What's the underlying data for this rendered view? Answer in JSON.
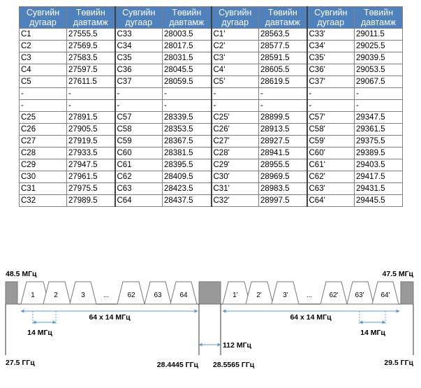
{
  "table": {
    "headers": [
      "Сувгийн дугаар",
      "Төвийн давтамж",
      "Сувгийн дугаар",
      "Төвийн давтамж",
      "Сувгийн дугаар",
      "Төвийн давтамж",
      "Сувгийн дугаар",
      "Төвийн давтамж"
    ],
    "rows": [
      [
        "C1",
        "27555.5",
        "C33",
        "28003.5",
        "C1'",
        "28563.5",
        "C33'",
        "29011.5"
      ],
      [
        "C2",
        "27569.5",
        "C34",
        "28017.5",
        "C2'",
        "28577.5",
        "C34'",
        "29025.5"
      ],
      [
        "C3",
        "27583.5",
        "C35",
        "28031.5",
        "C3'",
        "28591.5",
        "C35'",
        "29039.5"
      ],
      [
        "C4",
        "27597.5",
        "C36",
        "28045.5",
        "C4'",
        "28605.5",
        "C36'",
        "29053.5"
      ],
      [
        "C5",
        "27611.5",
        "C37",
        "28059.5",
        "C5'",
        "28619.5",
        "C37'",
        "29067.5"
      ],
      [
        "-",
        "-",
        "-",
        "-",
        "-",
        "-",
        "-",
        "-"
      ],
      [
        "-",
        "-",
        "-",
        "-",
        "-",
        "-",
        "-",
        "-"
      ],
      [
        "C25",
        "27891.5",
        "C57",
        "28339.5",
        "C25'",
        "28899.5",
        "C57'",
        "29347.5"
      ],
      [
        "C26",
        "27905.5",
        "C58",
        "28353.5",
        "C26'",
        "28913.5",
        "C58'",
        "29361.5"
      ],
      [
        "C27",
        "27919.5",
        "C59",
        "28367.5",
        "C27'",
        "28927.5",
        "C59'",
        "29375.5"
      ],
      [
        "C28",
        "27933.5",
        "C60",
        "28381.5",
        "C28'",
        "28941.5",
        "C60'",
        "29389.5"
      ],
      [
        "C29",
        "27947.5",
        "C61",
        "28395.5",
        "C29'",
        "28955.5",
        "C61'",
        "29403.5"
      ],
      [
        "C30",
        "27961.5",
        "C62",
        "28409.5",
        "C30'",
        "28969.5",
        "C62'",
        "29417.5"
      ],
      [
        "C31",
        "27975.5",
        "C63",
        "28423.5",
        "C31'",
        "28983.5",
        "C63'",
        "29431.5"
      ],
      [
        "C32",
        "27989.5",
        "C64",
        "28437.5",
        "C32'",
        "28997.5",
        "C64'",
        "29445.5"
      ]
    ]
  },
  "diagram": {
    "guard_left": "48.5 МГц",
    "guard_right": "47.5 МГц",
    "left_channels": [
      "1",
      "2",
      "3",
      "...",
      "62",
      "63",
      "64"
    ],
    "right_channels": [
      "1'",
      "2'",
      "3'",
      "...",
      "62'",
      "63'",
      "64'"
    ],
    "left_spacing": "14 МГц",
    "right_spacing": "14 МГц",
    "left_span": "64 x 14 МГц",
    "right_span": "64 x 14 МГц",
    "center_gap": "112 МГц",
    "freq_start": "27.5 ГГц",
    "freq_left_end": "28.4445 ГГц",
    "freq_right_start": "28.5565 ГГц",
    "freq_end": "29.5 ГГц"
  },
  "colors": {
    "header_bg": "#4f81bd",
    "guard_band": "#999999",
    "arrow": "#5b9bd5"
  }
}
